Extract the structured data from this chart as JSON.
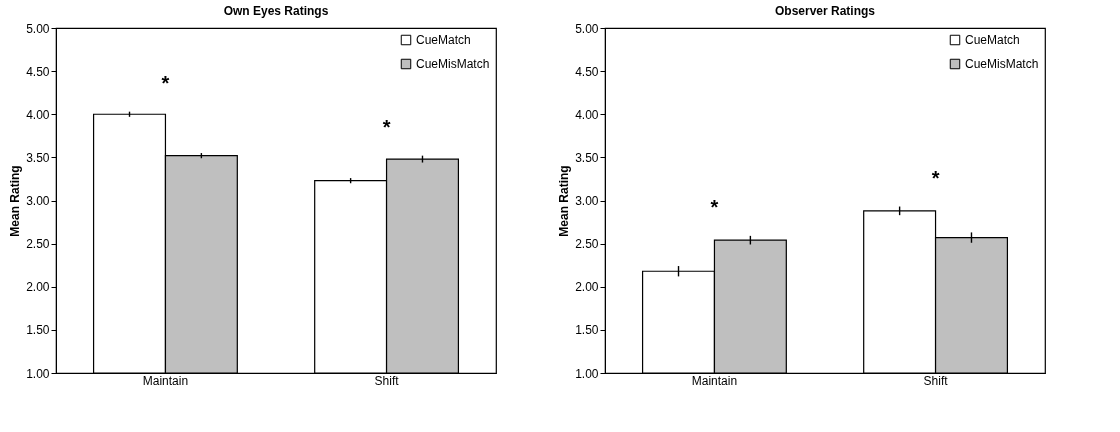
{
  "chart_data": [
    {
      "type": "bar",
      "title": "Own Eyes Ratings",
      "ylabel": "Mean Rating",
      "categories": [
        "Maintain",
        "Shift"
      ],
      "series": [
        {
          "name": "CueMatch",
          "color": "#ffffff",
          "values": [
            4.0,
            3.23
          ],
          "errors": [
            0.03,
            0.03
          ]
        },
        {
          "name": "CueMisMatch",
          "color": "#bfbfbf",
          "values": [
            3.52,
            3.48
          ],
          "errors": [
            0.03,
            0.04
          ]
        }
      ],
      "ylim": [
        1,
        5
      ],
      "yticks": [
        {
          "value": 1,
          "label": "1.00"
        },
        {
          "value": 1.5,
          "label": "1.50"
        },
        {
          "value": 2,
          "label": "2.00"
        },
        {
          "value": 2.5,
          "label": "2.50"
        },
        {
          "value": 3,
          "label": "3.00"
        },
        {
          "value": 3.5,
          "label": "3.50"
        },
        {
          "value": 4,
          "label": "4.00"
        },
        {
          "value": 4.5,
          "label": "4.50"
        },
        {
          "value": 5,
          "label": "5.00"
        }
      ],
      "annotations": [
        "*",
        "*"
      ],
      "grid": false,
      "legend": "top right"
    },
    {
      "type": "bar",
      "title": "Observer Ratings",
      "ylabel": "Mean Rating",
      "categories": [
        "Maintain",
        "Shift"
      ],
      "series": [
        {
          "name": "CueMatch",
          "color": "#ffffff",
          "values": [
            2.18,
            2.88
          ],
          "errors": [
            0.06,
            0.05
          ]
        },
        {
          "name": "CueMisMatch",
          "color": "#bfbfbf",
          "values": [
            2.54,
            2.57
          ],
          "errors": [
            0.05,
            0.06
          ]
        }
      ],
      "ylim": [
        1,
        5
      ],
      "yticks": [
        {
          "value": 1,
          "label": "1.00"
        },
        {
          "value": 1.5,
          "label": "1.50"
        },
        {
          "value": 2,
          "label": "2.00"
        },
        {
          "value": 2.5,
          "label": "2.50"
        },
        {
          "value": 3,
          "label": "3.00"
        },
        {
          "value": 3.5,
          "label": "3.50"
        },
        {
          "value": 4,
          "label": "4.00"
        },
        {
          "value": 4.5,
          "label": "4.50"
        },
        {
          "value": 5,
          "label": "5.00"
        }
      ],
      "annotations": [
        "*",
        "*"
      ],
      "grid": false,
      "legend": "top right"
    }
  ]
}
